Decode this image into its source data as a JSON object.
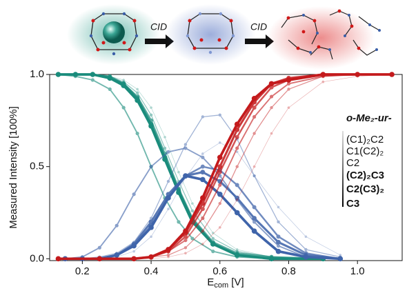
{
  "scheme": {
    "arrow_labels": [
      "CID",
      "CID"
    ]
  },
  "chart_data": {
    "type": "line",
    "ylabel": "Measured Intensity [100%]",
    "xlabel": {
      "main": "E",
      "sub": "com",
      "unit": " [V]"
    },
    "xlim": [
      0.105,
      1.13
    ],
    "ylim": [
      -0.01,
      1.0
    ],
    "xticks": [
      0.2,
      0.4,
      0.6,
      0.8,
      {
        "value": 1,
        "label": "1.0"
      }
    ],
    "yticks": [
      {
        "value": 0,
        "label": "0.0"
      },
      0.5,
      {
        "value": 1,
        "label": "1.0"
      }
    ],
    "legend": {
      "title": "o-Me₂-ur-",
      "position": "right"
    },
    "series": [
      {
        "name": "(C1)₂C2",
        "legend_color": "#b4b4b4",
        "curves": [
          {
            "color": "#1a8c7c",
            "x": [
              0.13,
              0.18,
              0.23,
              0.28,
              0.32,
              0.36,
              0.4,
              0.44,
              0.48,
              0.52,
              0.58,
              0.65,
              0.75,
              0.9
            ],
            "values": [
              1,
              1,
              1,
              0.99,
              0.97,
              0.92,
              0.82,
              0.66,
              0.47,
              0.3,
              0.14,
              0.05,
              0.01,
              0
            ]
          },
          {
            "color": "#3f64aa",
            "x": [
              0.15,
              0.2,
              0.25,
              0.3,
              0.35,
              0.4,
              0.45,
              0.5,
              0.55,
              0.6,
              0.65,
              0.7,
              0.77,
              0.85,
              0.95
            ],
            "values": [
              0,
              0,
              0,
              0.01,
              0.04,
              0.12,
              0.27,
              0.44,
              0.57,
              0.63,
              0.58,
              0.45,
              0.28,
              0.12,
              0.02
            ]
          },
          {
            "color": "#c41a1c",
            "x": [
              0.13,
              0.25,
              0.35,
              0.4,
              0.45,
              0.5,
              0.55,
              0.6,
              0.65,
              0.7,
              0.75,
              0.8,
              0.9,
              1.0,
              1.1
            ],
            "values": [
              0,
              0,
              0,
              0,
              0.01,
              0.03,
              0.08,
              0.17,
              0.32,
              0.5,
              0.68,
              0.82,
              0.96,
              0.99,
              1
            ]
          }
        ]
      },
      {
        "name": "C1(C2)₂",
        "legend_color": "#9a9a9a",
        "curves": [
          {
            "color": "#1a8c7c",
            "x": [
              0.13,
              0.18,
              0.23,
              0.28,
              0.32,
              0.36,
              0.4,
              0.44,
              0.48,
              0.52,
              0.58,
              0.65,
              0.75,
              0.9
            ],
            "values": [
              1,
              1,
              1,
              0.99,
              0.96,
              0.9,
              0.78,
              0.6,
              0.42,
              0.26,
              0.11,
              0.04,
              0.01,
              0
            ]
          },
          {
            "color": "#3f64aa",
            "x": [
              0.15,
              0.2,
              0.25,
              0.3,
              0.35,
              0.4,
              0.45,
              0.5,
              0.55,
              0.6,
              0.65,
              0.7,
              0.77,
              0.85,
              0.95
            ],
            "values": [
              0,
              0,
              0.01,
              0.03,
              0.09,
              0.22,
              0.42,
              0.62,
              0.77,
              0.78,
              0.65,
              0.45,
              0.2,
              0.05,
              0.01
            ]
          },
          {
            "color": "#c41a1c",
            "x": [
              0.13,
              0.25,
              0.35,
              0.4,
              0.45,
              0.5,
              0.55,
              0.6,
              0.65,
              0.7,
              0.75,
              0.8,
              0.9,
              1.0,
              1.1
            ],
            "values": [
              0,
              0,
              0,
              0.01,
              0.02,
              0.06,
              0.15,
              0.3,
              0.5,
              0.68,
              0.82,
              0.92,
              0.99,
              1,
              1
            ]
          }
        ]
      },
      {
        "name": "C2",
        "legend_color": "#7e7e7e",
        "curves": [
          {
            "color": "#1a8c7c",
            "x": [
              0.13,
              0.18,
              0.23,
              0.28,
              0.32,
              0.36,
              0.4,
              0.44,
              0.48,
              0.52,
              0.58,
              0.65,
              0.75,
              0.9
            ],
            "values": [
              1,
              0.99,
              0.97,
              0.92,
              0.82,
              0.68,
              0.5,
              0.33,
              0.2,
              0.11,
              0.04,
              0.01,
              0,
              0
            ]
          },
          {
            "color": "#3f64aa",
            "x": [
              0.15,
              0.2,
              0.25,
              0.3,
              0.35,
              0.4,
              0.45,
              0.5,
              0.55,
              0.6,
              0.65,
              0.7,
              0.77,
              0.85,
              0.95
            ],
            "values": [
              0,
              0.01,
              0.06,
              0.18,
              0.35,
              0.5,
              0.58,
              0.6,
              0.55,
              0.45,
              0.32,
              0.2,
              0.07,
              0.01,
              0
            ]
          },
          {
            "color": "#c41a1c",
            "x": [
              0.13,
              0.25,
              0.35,
              0.4,
              0.45,
              0.5,
              0.55,
              0.6,
              0.65,
              0.7,
              0.75,
              0.8,
              0.9,
              1.0,
              1.1
            ],
            "values": [
              0,
              0,
              0,
              0.01,
              0.04,
              0.1,
              0.22,
              0.4,
              0.6,
              0.77,
              0.88,
              0.95,
              0.99,
              1,
              1
            ]
          }
        ]
      },
      {
        "name": "(C2)₂C3",
        "legend_color": "#5c5c5c",
        "curves": [
          {
            "color": "#1a8c7c",
            "x": [
              0.13,
              0.18,
              0.23,
              0.28,
              0.32,
              0.36,
              0.4,
              0.44,
              0.48,
              0.52,
              0.58,
              0.65,
              0.75,
              0.9
            ],
            "values": [
              1,
              1,
              1,
              0.99,
              0.95,
              0.88,
              0.75,
              0.57,
              0.38,
              0.22,
              0.09,
              0.03,
              0.01,
              0
            ]
          },
          {
            "color": "#3f64aa",
            "x": [
              0.15,
              0.2,
              0.25,
              0.3,
              0.35,
              0.4,
              0.45,
              0.5,
              0.55,
              0.6,
              0.65,
              0.7,
              0.77,
              0.85,
              0.95
            ],
            "values": [
              0,
              0,
              0,
              0.02,
              0.07,
              0.18,
              0.33,
              0.45,
              0.5,
              0.48,
              0.4,
              0.28,
              0.12,
              0.03,
              0
            ]
          },
          {
            "color": "#c41a1c",
            "x": [
              0.13,
              0.25,
              0.35,
              0.4,
              0.45,
              0.5,
              0.55,
              0.6,
              0.65,
              0.7,
              0.75,
              0.8,
              0.9,
              1.0,
              1.1
            ],
            "values": [
              0,
              0,
              0,
              0.01,
              0.04,
              0.12,
              0.27,
              0.47,
              0.66,
              0.82,
              0.93,
              0.97,
              1,
              1,
              1
            ]
          }
        ]
      },
      {
        "name": "C2(C3)₂",
        "legend_color": "#333333",
        "curves": [
          {
            "color": "#1a8c7c",
            "x": [
              0.13,
              0.18,
              0.23,
              0.28,
              0.32,
              0.36,
              0.4,
              0.44,
              0.48,
              0.52,
              0.58,
              0.65,
              0.75,
              0.9
            ],
            "values": [
              1,
              1,
              1,
              0.98,
              0.95,
              0.87,
              0.73,
              0.55,
              0.37,
              0.21,
              0.08,
              0.02,
              0,
              0
            ]
          },
          {
            "color": "#3f64aa",
            "x": [
              0.15,
              0.2,
              0.25,
              0.3,
              0.35,
              0.4,
              0.45,
              0.5,
              0.55,
              0.6,
              0.65,
              0.7,
              0.77,
              0.85,
              0.95
            ],
            "values": [
              0,
              0,
              0,
              0.02,
              0.08,
              0.2,
              0.35,
              0.45,
              0.47,
              0.42,
              0.33,
              0.22,
              0.09,
              0.02,
              0
            ]
          },
          {
            "color": "#c41a1c",
            "x": [
              0.13,
              0.25,
              0.35,
              0.4,
              0.45,
              0.5,
              0.55,
              0.6,
              0.65,
              0.7,
              0.75,
              0.8,
              0.9,
              1.0,
              1.1
            ],
            "values": [
              0,
              0,
              0,
              0.01,
              0.05,
              0.14,
              0.3,
              0.5,
              0.7,
              0.85,
              0.95,
              0.98,
              1,
              1,
              1
            ]
          }
        ]
      },
      {
        "name": "C3",
        "legend_color": "#000000",
        "curves": [
          {
            "color": "#1a8c7c",
            "x": [
              0.13,
              0.18,
              0.23,
              0.28,
              0.32,
              0.36,
              0.4,
              0.44,
              0.48,
              0.52,
              0.58,
              0.65,
              0.75,
              0.9
            ],
            "values": [
              1,
              1,
              1,
              0.98,
              0.94,
              0.86,
              0.72,
              0.54,
              0.36,
              0.2,
              0.08,
              0.02,
              0,
              0
            ]
          },
          {
            "color": "#3f64aa",
            "x": [
              0.15,
              0.2,
              0.25,
              0.3,
              0.35,
              0.4,
              0.45,
              0.5,
              0.55,
              0.6,
              0.65,
              0.7,
              0.77,
              0.85,
              0.95
            ],
            "values": [
              0,
              0,
              0,
              0.02,
              0.07,
              0.17,
              0.33,
              0.45,
              0.43,
              0.35,
              0.25,
              0.15,
              0.04,
              0.01,
              0
            ]
          },
          {
            "color": "#c41a1c",
            "x": [
              0.13,
              0.25,
              0.35,
              0.4,
              0.45,
              0.5,
              0.55,
              0.6,
              0.65,
              0.7,
              0.75,
              0.8,
              0.9,
              1.0,
              1.1
            ],
            "values": [
              0,
              0,
              0,
              0.01,
              0.05,
              0.15,
              0.33,
              0.55,
              0.73,
              0.87,
              0.95,
              0.97,
              1,
              1,
              1
            ]
          }
        ]
      }
    ]
  }
}
